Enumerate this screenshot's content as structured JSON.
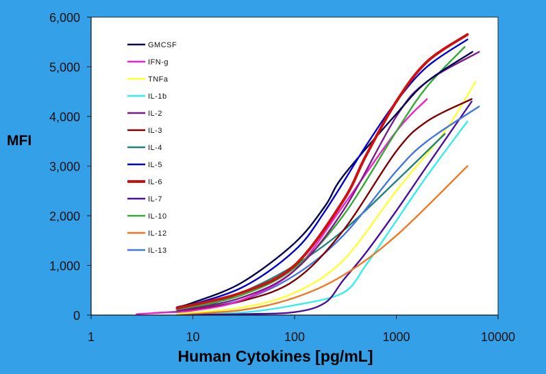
{
  "chart_data": {
    "type": "line",
    "title": "",
    "xlabel": "Human Cytokines [pg/mL]",
    "ylabel": "MFI",
    "xscale": "log",
    "xlim": [
      1,
      10000
    ],
    "ylim": [
      0,
      6000
    ],
    "xticks": [
      1,
      10,
      100,
      1000,
      10000
    ],
    "xtick_labels": [
      "1",
      "10",
      "100",
      "1000",
      "10000"
    ],
    "yticks": [
      0,
      1000,
      2000,
      3000,
      4000,
      5000,
      6000
    ],
    "ytick_labels": [
      "0",
      "1,000",
      "2,000",
      "3,000",
      "4,000",
      "5,000",
      "6,000"
    ],
    "grid": false,
    "legend_position": "top-left",
    "plot_background": "#ffffff",
    "figure_background": "#33a0e8",
    "series": [
      {
        "name": "GMCSF",
        "color": "#000050",
        "points": [
          [
            7,
            160
          ],
          [
            10,
            250
          ],
          [
            30,
            650
          ],
          [
            100,
            1450
          ],
          [
            200,
            2200
          ],
          [
            300,
            2800
          ],
          [
            1000,
            4050
          ],
          [
            2000,
            4700
          ],
          [
            5600,
            5300
          ]
        ]
      },
      {
        "name": "IFN-g",
        "color": "#ee22cc",
        "points": [
          [
            2.8,
            20
          ],
          [
            5,
            50
          ],
          [
            10,
            90
          ],
          [
            30,
            300
          ],
          [
            100,
            900
          ],
          [
            300,
            2200
          ],
          [
            1000,
            3700
          ],
          [
            2000,
            4350
          ]
        ]
      },
      {
        "name": "TNFa",
        "color": "#ffff33",
        "points": [
          [
            7,
            30
          ],
          [
            30,
            150
          ],
          [
            100,
            450
          ],
          [
            300,
            1100
          ],
          [
            1000,
            2500
          ],
          [
            3000,
            3700
          ],
          [
            6000,
            4700
          ]
        ]
      },
      {
        "name": "IL-1b",
        "color": "#33eeee",
        "points": [
          [
            7,
            10
          ],
          [
            30,
            50
          ],
          [
            100,
            200
          ],
          [
            300,
            450
          ],
          [
            500,
            1000
          ],
          [
            1000,
            1900
          ],
          [
            2000,
            2800
          ],
          [
            5000,
            3900
          ]
        ]
      },
      {
        "name": "IL-2",
        "color": "#7a1a8a",
        "points": [
          [
            7,
            80
          ],
          [
            30,
            350
          ],
          [
            100,
            900
          ],
          [
            300,
            2100
          ],
          [
            1000,
            4000
          ],
          [
            2000,
            4700
          ],
          [
            6500,
            5300
          ]
        ]
      },
      {
        "name": "IL-3",
        "color": "#800000",
        "points": [
          [
            7,
            60
          ],
          [
            30,
            280
          ],
          [
            100,
            700
          ],
          [
            300,
            1700
          ],
          [
            1000,
            3300
          ],
          [
            2000,
            3900
          ],
          [
            5500,
            4350
          ]
        ]
      },
      {
        "name": "IL-4",
        "color": "#208080",
        "points": [
          [
            4,
            40
          ],
          [
            10,
            120
          ],
          [
            30,
            450
          ],
          [
            100,
            1000
          ],
          [
            300,
            1700
          ],
          [
            1000,
            2700
          ],
          [
            3000,
            3650
          ]
        ]
      },
      {
        "name": "IL-5",
        "color": "#0000cc",
        "points": [
          [
            7,
            130
          ],
          [
            30,
            550
          ],
          [
            100,
            1300
          ],
          [
            200,
            2100
          ],
          [
            500,
            3400
          ],
          [
            1000,
            4300
          ],
          [
            2000,
            5000
          ],
          [
            5000,
            5550
          ]
        ]
      },
      {
        "name": "IL-6",
        "color": "#cc1111",
        "points": [
          [
            7,
            140
          ],
          [
            30,
            450
          ],
          [
            100,
            1000
          ],
          [
            300,
            2300
          ],
          [
            500,
            3200
          ],
          [
            1000,
            4300
          ],
          [
            2000,
            5100
          ],
          [
            5000,
            5650
          ]
        ]
      },
      {
        "name": "IL-7",
        "color": "#4b0fa0",
        "points": [
          [
            7,
            10
          ],
          [
            30,
            20
          ],
          [
            100,
            60
          ],
          [
            200,
            250
          ],
          [
            300,
            700
          ],
          [
            500,
            1250
          ],
          [
            1000,
            2100
          ],
          [
            2000,
            3000
          ],
          [
            5500,
            4300
          ]
        ]
      },
      {
        "name": "IL-10",
        "color": "#33aa33",
        "points": [
          [
            7,
            100
          ],
          [
            30,
            400
          ],
          [
            100,
            950
          ],
          [
            300,
            2000
          ],
          [
            1000,
            3700
          ],
          [
            2000,
            4600
          ],
          [
            4700,
            5400
          ]
        ]
      },
      {
        "name": "IL-12",
        "color": "#ee7722",
        "points": [
          [
            7,
            20
          ],
          [
            30,
            100
          ],
          [
            100,
            350
          ],
          [
            300,
            800
          ],
          [
            1000,
            1600
          ],
          [
            5000,
            3000
          ]
        ]
      },
      {
        "name": "IL-13",
        "color": "#4477dd",
        "points": [
          [
            7,
            80
          ],
          [
            30,
            300
          ],
          [
            100,
            800
          ],
          [
            300,
            1600
          ],
          [
            1000,
            2900
          ],
          [
            2000,
            3500
          ],
          [
            6500,
            4200
          ]
        ]
      }
    ]
  }
}
